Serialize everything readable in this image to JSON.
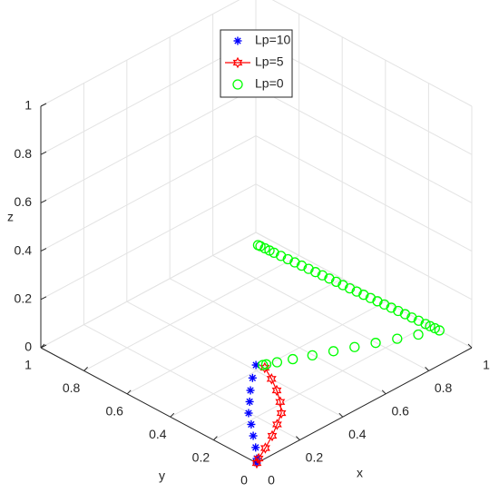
{
  "chart_data": {
    "type": "scatter3d",
    "xlabel": "x",
    "ylabel": "y",
    "zlabel": "z",
    "xlim": [
      0,
      1
    ],
    "ylim": [
      0,
      1
    ],
    "zlim": [
      0,
      1
    ],
    "xticks": [
      0,
      0.2,
      0.4,
      0.6,
      0.8,
      1
    ],
    "yticks": [
      0,
      0.2,
      0.4,
      0.6,
      0.8,
      1
    ],
    "zticks": [
      0,
      0.2,
      0.4,
      0.6,
      0.8,
      1
    ],
    "grid": true,
    "legend": "top",
    "series": [
      {
        "name": "Lp=10",
        "color": "#0000ff",
        "marker": "asterisk",
        "x": [
          0,
          0.0195,
          0.065,
          0.11,
          0.155,
          0.198,
          0.25,
          0.301,
          0.36,
          0.424
        ],
        "y": [
          0,
          0.0195,
          0.07,
          0.126,
          0.18,
          0.235,
          0.282,
          0.329,
          0.378,
          0.426
        ],
        "z": [
          0,
          0,
          0,
          0,
          0,
          0,
          0,
          0,
          0,
          0
        ]
      },
      {
        "name": "Lp=5",
        "color": "#ff0000",
        "marker": "hexagram",
        "x": [
          0,
          0.024,
          0.085,
          0.154,
          0.215,
          0.274,
          0.32,
          0.362,
          0.4,
          0.433
        ],
        "y": [
          0,
          0.015,
          0.045,
          0.082,
          0.12,
          0.159,
          0.21,
          0.268,
          0.33,
          0.394
        ],
        "z": [
          0,
          0,
          0,
          0,
          0,
          0,
          0,
          0,
          0,
          0
        ]
      },
      {
        "name": "Lp=0",
        "color": "#00ff00",
        "marker": "circle",
        "x": [
          0.44,
          0.451,
          0.485,
          0.535,
          0.597,
          0.664,
          0.731,
          0.798,
          0.866,
          0.933,
          1.0,
          0.999,
          0.997,
          0.996,
          0.994,
          0.992,
          0.991,
          0.989,
          0.987,
          0.985,
          0.983,
          0.981,
          0.979,
          0.977,
          0.975,
          0.973,
          0.972,
          0.97,
          0.968,
          0.966,
          0.964,
          0.962,
          0.96,
          0.958,
          0.956,
          0.954,
          0.953,
          0.952,
          0.951,
          0.95
        ],
        "y": [
          0.41,
          0.405,
          0.389,
          0.366,
          0.337,
          0.306,
          0.275,
          0.244,
          0.212,
          0.181,
          0.15,
          0.17,
          0.19,
          0.21,
          0.24,
          0.27,
          0.3,
          0.33,
          0.36,
          0.39,
          0.42,
          0.45,
          0.48,
          0.51,
          0.54,
          0.57,
          0.6,
          0.63,
          0.66,
          0.69,
          0.72,
          0.75,
          0.78,
          0.81,
          0.84,
          0.87,
          0.89,
          0.91,
          0.93,
          0.94
        ],
        "z": [
          0,
          0,
          0,
          0,
          0,
          0,
          0,
          0,
          0,
          0,
          0,
          0,
          0,
          0,
          0,
          0,
          0,
          0,
          0,
          0,
          0,
          0,
          0,
          0,
          0,
          0,
          0,
          0,
          0,
          0,
          0,
          0,
          0,
          0,
          0,
          0,
          0,
          0,
          0,
          0
        ]
      }
    ]
  }
}
